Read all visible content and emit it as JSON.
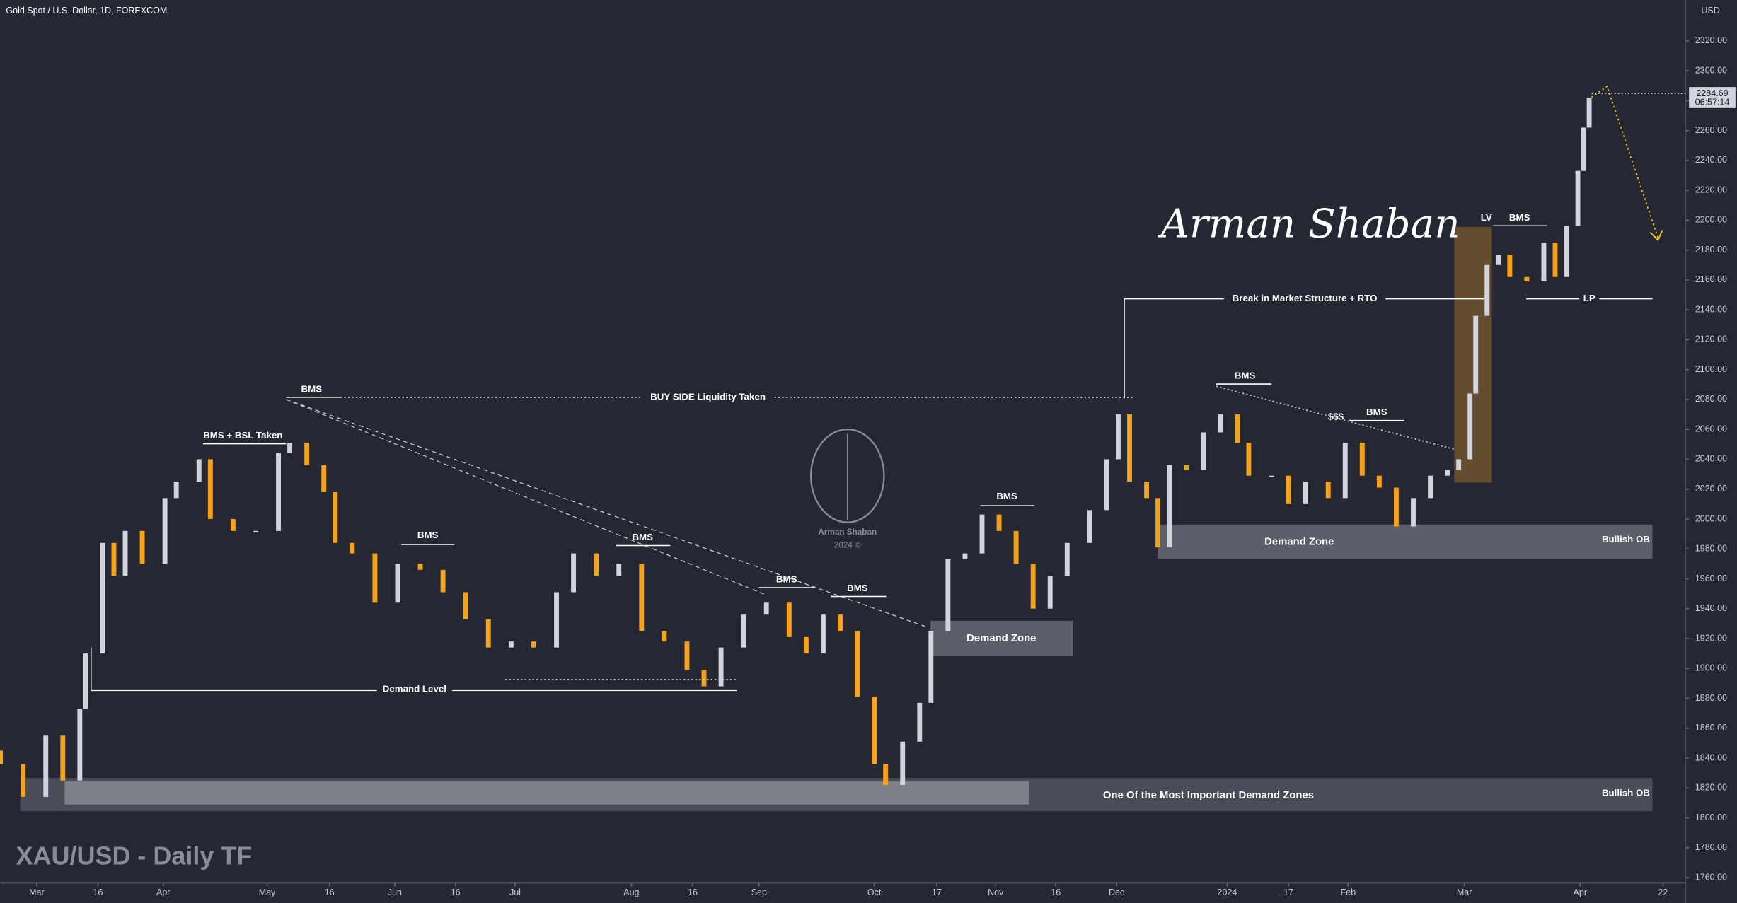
{
  "chart_data": {
    "type": "candlestick",
    "title": "Gold Spot / U.S. Dollar, 1D, FOREXCOM",
    "currency": "USD",
    "last_price": 2284.69,
    "countdown": "06:57:14",
    "up_color": "#d1d4dc",
    "down_color": "#f7a21b",
    "grid": false,
    "xlim": [
      0,
      297
    ],
    "ylim": [
      1756.3,
      2347.4
    ],
    "yticks": [
      {
        "value": 2320,
        "label": "2320.00"
      },
      {
        "value": 2300,
        "label": "2300.00"
      },
      {
        "value": 2280,
        "label": "2280.00"
      },
      {
        "value": 2260,
        "label": "2260.00"
      },
      {
        "value": 2240,
        "label": "2240.00"
      },
      {
        "value": 2220,
        "label": "2220.00"
      },
      {
        "value": 2200,
        "label": "2200.00"
      },
      {
        "value": 2180,
        "label": "2180.00"
      },
      {
        "value": 2160,
        "label": "2160.00"
      },
      {
        "value": 2140,
        "label": "2140.00"
      },
      {
        "value": 2120,
        "label": "2120.00"
      },
      {
        "value": 2100,
        "label": "2100.00"
      },
      {
        "value": 2080,
        "label": "2080.00"
      },
      {
        "value": 2060,
        "label": "2060.00"
      },
      {
        "value": 2040,
        "label": "2040.00"
      },
      {
        "value": 2020,
        "label": "2020.00"
      },
      {
        "value": 2000,
        "label": "2000.00"
      },
      {
        "value": 1980,
        "label": "1980.00"
      },
      {
        "value": 1960,
        "label": "1960.00"
      },
      {
        "value": 1940,
        "label": "1940.00"
      },
      {
        "value": 1920,
        "label": "1920.00"
      },
      {
        "value": 1900,
        "label": "1900.00"
      },
      {
        "value": 1880,
        "label": "1880.00"
      },
      {
        "value": 1860,
        "label": "1860.00"
      },
      {
        "value": 1840,
        "label": "1840.00"
      },
      {
        "value": 1820,
        "label": "1820.00"
      },
      {
        "value": 1800,
        "label": "1800.00"
      },
      {
        "value": 1780,
        "label": "1780.00"
      },
      {
        "value": 1760,
        "label": "1760.00"
      }
    ],
    "xticks": [
      {
        "value": 6.4,
        "label": "Mar"
      },
      {
        "value": 17.2,
        "label": "16"
      },
      {
        "value": 28.7,
        "label": "Apr"
      },
      {
        "value": 47,
        "label": "May"
      },
      {
        "value": 58,
        "label": "16"
      },
      {
        "value": 69.5,
        "label": "Jun"
      },
      {
        "value": 80.2,
        "label": "16"
      },
      {
        "value": 90.7,
        "label": "Jul"
      },
      {
        "value": 111.2,
        "label": "Aug"
      },
      {
        "value": 122,
        "label": "16"
      },
      {
        "value": 133.7,
        "label": "Sep"
      },
      {
        "value": 154,
        "label": "Oct"
      },
      {
        "value": 165,
        "label": "17"
      },
      {
        "value": 175.4,
        "label": "Nov"
      },
      {
        "value": 186,
        "label": "16"
      },
      {
        "value": 196.7,
        "label": "Dec"
      },
      {
        "value": 216.2,
        "label": "2024"
      },
      {
        "value": 227,
        "label": "17"
      },
      {
        "value": 237.5,
        "label": "Feb"
      },
      {
        "value": 258,
        "label": "Mar"
      },
      {
        "value": 278.4,
        "label": "Apr"
      },
      {
        "value": 293,
        "label": "22"
      }
    ],
    "candles": {
      "x": [
        0,
        4,
        8,
        11,
        14,
        15,
        18,
        20,
        22,
        25,
        29,
        31,
        35,
        37,
        41,
        45,
        49,
        51,
        54,
        57,
        59,
        62,
        66,
        70,
        74,
        78,
        82,
        86,
        90,
        94,
        98,
        101,
        105,
        109,
        113,
        117,
        121,
        124,
        127,
        131,
        135,
        139,
        142,
        145,
        148,
        151,
        154,
        156,
        159,
        162,
        164,
        167,
        170,
        173,
        176,
        179,
        182,
        185,
        188,
        192,
        195,
        197,
        199,
        202,
        204,
        206,
        209,
        212,
        215,
        218,
        220,
        224,
        227,
        230,
        234,
        237,
        240,
        243,
        246,
        249,
        252,
        255,
        257,
        259,
        260,
        262,
        264,
        266,
        269,
        272,
        274,
        276,
        278,
        279,
        280
      ],
      "open": [
        1845,
        1836,
        1814,
        1855,
        1825,
        1873,
        1910,
        1984,
        1962,
        1992,
        1970,
        2014,
        2025,
        2040,
        2000,
        1992,
        1992,
        2044,
        2051,
        2036,
        2018,
        1984,
        1977,
        1944,
        1970,
        1966,
        1951,
        1933,
        1914,
        1918,
        1914,
        1951,
        1977,
        1962,
        1970,
        1925,
        1918,
        1899,
        1888,
        1914,
        1936,
        1944,
        1921,
        1910,
        1936,
        1925,
        1881,
        1836,
        1822,
        1851,
        1877,
        1925,
        1973,
        1977,
        2003,
        1992,
        1970,
        1940,
        1962,
        1984,
        2006,
        2040,
        2070,
        2025,
        2014,
        1981,
        2036,
        2033,
        2058,
        2070,
        2051,
        2029,
        2029,
        2010,
        2025,
        2014,
        2051,
        2029,
        2021,
        1995,
        2014,
        2029,
        2033,
        2040,
        2084,
        2136,
        2170,
        2177,
        2162,
        2159,
        2185,
        2162,
        2196,
        2233,
        2262
      ],
      "close": [
        1836,
        1814,
        1855,
        1825,
        1873,
        1910,
        1984,
        1962,
        1992,
        1970,
        2014,
        2025,
        2040,
        2000,
        1992,
        1992,
        2044,
        2051,
        2036,
        2018,
        1984,
        1977,
        1944,
        1970,
        1966,
        1951,
        1933,
        1914,
        1918,
        1914,
        1951,
        1977,
        1962,
        1970,
        1925,
        1918,
        1899,
        1888,
        1914,
        1936,
        1944,
        1921,
        1910,
        1936,
        1925,
        1881,
        1836,
        1822,
        1851,
        1877,
        1925,
        1973,
        1977,
        2003,
        1992,
        1970,
        1940,
        1962,
        1984,
        2006,
        2040,
        2070,
        2025,
        2014,
        1981,
        2036,
        2033,
        2058,
        2070,
        2051,
        2029,
        2029,
        2010,
        2025,
        2014,
        2051,
        2029,
        2021,
        1995,
        2014,
        2029,
        2033,
        2040,
        2084,
        2136,
        2170,
        2177,
        2162,
        2159,
        2185,
        2162,
        2196,
        2233,
        2262,
        2282
      ]
    },
    "annotations": [
      "BMS + BSL Taken",
      "BMS",
      "BUY SIDE Liquidity Taken",
      "BMS",
      "BMS",
      "BMS",
      "BMS",
      "BMS",
      "Demand Level",
      "Demand Zone",
      "One Of the Most Important Demand Zones",
      "Bullish OB",
      "BMS",
      "$$$",
      "BMS",
      "Break in Market Structure + RTO",
      "Demand Zone",
      "Bullish OB",
      "LV",
      "BMS",
      "LP"
    ],
    "signature": "Arman Shaban",
    "logo_text": [
      "Arman Shaban",
      "2024 ©"
    ],
    "watermark": "XAU/USD - Daily TF"
  }
}
